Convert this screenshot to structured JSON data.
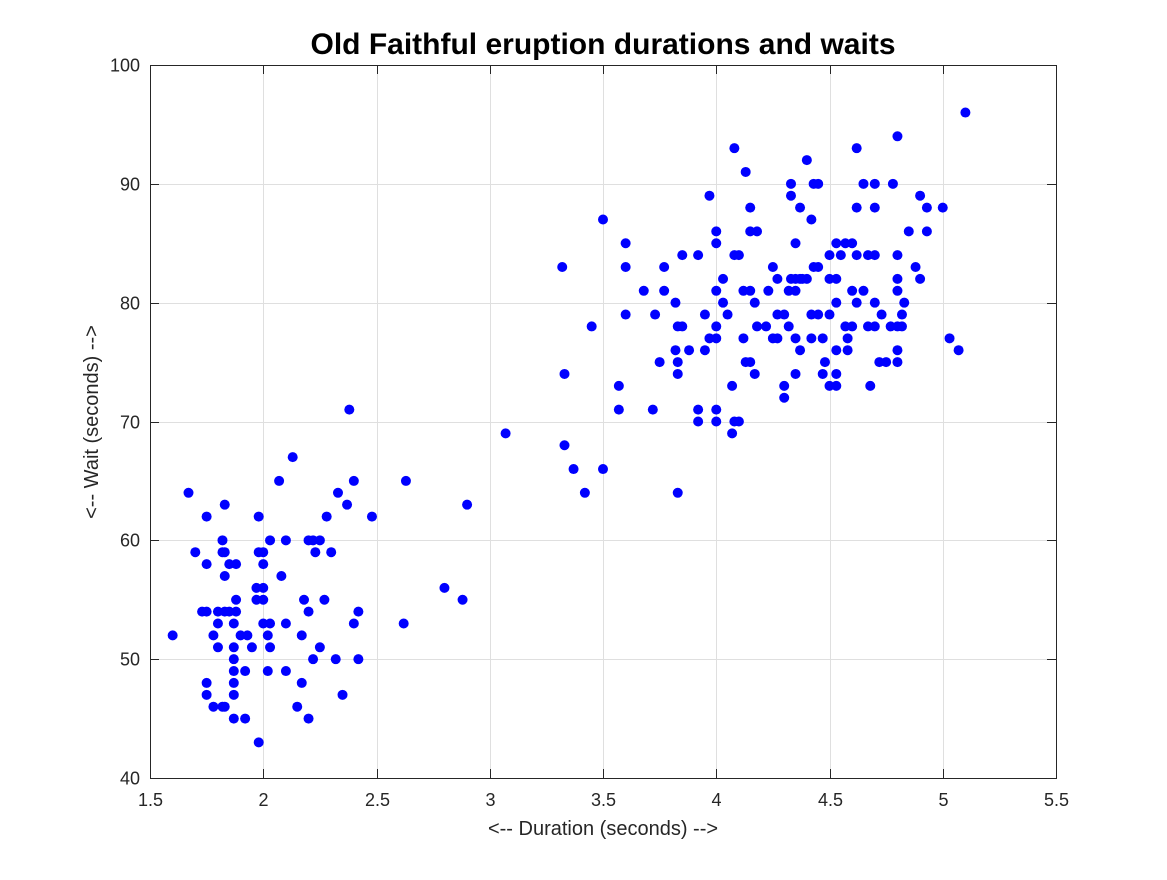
{
  "chart_data": {
    "type": "scatter",
    "title": "Old Faithful eruption durations and waits",
    "xlabel": "<-- Duration (seconds) -->",
    "ylabel": "<-- Wait (seconds) -->",
    "xlim": [
      1.5,
      5.5
    ],
    "ylim": [
      40,
      100
    ],
    "xticks": [
      "1.5",
      "2",
      "2.5",
      "3",
      "3.5",
      "4",
      "4.5",
      "5",
      "5.5"
    ],
    "yticks": [
      "40",
      "50",
      "60",
      "70",
      "80",
      "90",
      "100"
    ],
    "grid": true,
    "legend": "none",
    "marker_color": "#0000ff",
    "points": [
      [
        1.6,
        52
      ],
      [
        1.67,
        64
      ],
      [
        1.7,
        59
      ],
      [
        1.73,
        54
      ],
      [
        1.75,
        62
      ],
      [
        1.75,
        58
      ],
      [
        1.75,
        48
      ],
      [
        1.75,
        47
      ],
      [
        1.75,
        54
      ],
      [
        1.78,
        46
      ],
      [
        1.78,
        52
      ],
      [
        1.8,
        54
      ],
      [
        1.8,
        53
      ],
      [
        1.8,
        51
      ],
      [
        1.82,
        60
      ],
      [
        1.82,
        59
      ],
      [
        1.82,
        46
      ],
      [
        1.83,
        63
      ],
      [
        1.83,
        57
      ],
      [
        1.83,
        54
      ],
      [
        1.83,
        59
      ],
      [
        1.83,
        46
      ],
      [
        1.85,
        58
      ],
      [
        1.85,
        54
      ],
      [
        1.87,
        53
      ],
      [
        1.87,
        51
      ],
      [
        1.87,
        50
      ],
      [
        1.87,
        49
      ],
      [
        1.87,
        48
      ],
      [
        1.87,
        47
      ],
      [
        1.87,
        45
      ],
      [
        1.88,
        58
      ],
      [
        1.88,
        55
      ],
      [
        1.88,
        54
      ],
      [
        1.9,
        52
      ],
      [
        1.92,
        49
      ],
      [
        1.92,
        45
      ],
      [
        1.93,
        52
      ],
      [
        1.95,
        51
      ],
      [
        1.97,
        56
      ],
      [
        1.97,
        55
      ],
      [
        1.98,
        62
      ],
      [
        1.98,
        59
      ],
      [
        1.98,
        43
      ],
      [
        2.0,
        59
      ],
      [
        2.0,
        58
      ],
      [
        2.0,
        56
      ],
      [
        2.0,
        55
      ],
      [
        2.0,
        53
      ],
      [
        2.02,
        52
      ],
      [
        2.02,
        49
      ],
      [
        2.03,
        60
      ],
      [
        2.03,
        53
      ],
      [
        2.03,
        51
      ],
      [
        2.07,
        65
      ],
      [
        2.08,
        57
      ],
      [
        2.1,
        60
      ],
      [
        2.1,
        53
      ],
      [
        2.1,
        49
      ],
      [
        2.13,
        67
      ],
      [
        2.15,
        46
      ],
      [
        2.17,
        52
      ],
      [
        2.17,
        48
      ],
      [
        2.18,
        55
      ],
      [
        2.2,
        60
      ],
      [
        2.2,
        54
      ],
      [
        2.2,
        45
      ],
      [
        2.22,
        60
      ],
      [
        2.22,
        50
      ],
      [
        2.23,
        59
      ],
      [
        2.25,
        60
      ],
      [
        2.25,
        51
      ],
      [
        2.27,
        55
      ],
      [
        2.28,
        62
      ],
      [
        2.3,
        59
      ],
      [
        2.32,
        50
      ],
      [
        2.33,
        64
      ],
      [
        2.35,
        47
      ],
      [
        2.37,
        63
      ],
      [
        2.38,
        71
      ],
      [
        2.4,
        65
      ],
      [
        2.4,
        53
      ],
      [
        2.42,
        54
      ],
      [
        2.42,
        50
      ],
      [
        2.48,
        62
      ],
      [
        2.62,
        53
      ],
      [
        2.63,
        65
      ],
      [
        2.8,
        56
      ],
      [
        2.88,
        55
      ],
      [
        2.9,
        63
      ],
      [
        3.07,
        69
      ],
      [
        3.32,
        83
      ],
      [
        3.33,
        74
      ],
      [
        3.33,
        68
      ],
      [
        3.37,
        66
      ],
      [
        3.42,
        64
      ],
      [
        3.45,
        78
      ],
      [
        3.5,
        87
      ],
      [
        3.5,
        66
      ],
      [
        3.57,
        73
      ],
      [
        3.57,
        71
      ],
      [
        3.6,
        85
      ],
      [
        3.6,
        83
      ],
      [
        3.6,
        79
      ],
      [
        3.68,
        81
      ],
      [
        3.72,
        71
      ],
      [
        3.73,
        79
      ],
      [
        3.75,
        75
      ],
      [
        3.77,
        81
      ],
      [
        3.77,
        83
      ],
      [
        3.82,
        80
      ],
      [
        3.82,
        76
      ],
      [
        3.83,
        78
      ],
      [
        3.83,
        75
      ],
      [
        3.83,
        74
      ],
      [
        3.83,
        64
      ],
      [
        3.85,
        84
      ],
      [
        3.85,
        78
      ],
      [
        3.88,
        76
      ],
      [
        3.92,
        84
      ],
      [
        3.92,
        71
      ],
      [
        3.92,
        70
      ],
      [
        3.95,
        79
      ],
      [
        3.95,
        76
      ],
      [
        3.97,
        89
      ],
      [
        3.97,
        77
      ],
      [
        4.0,
        86
      ],
      [
        4.0,
        85
      ],
      [
        4.0,
        81
      ],
      [
        4.0,
        78
      ],
      [
        4.0,
        77
      ],
      [
        4.0,
        71
      ],
      [
        4.0,
        70
      ],
      [
        4.03,
        82
      ],
      [
        4.03,
        80
      ],
      [
        4.05,
        79
      ],
      [
        4.07,
        73
      ],
      [
        4.07,
        69
      ],
      [
        4.08,
        93
      ],
      [
        4.08,
        84
      ],
      [
        4.08,
        70
      ],
      [
        4.1,
        84
      ],
      [
        4.1,
        70
      ],
      [
        4.12,
        81
      ],
      [
        4.12,
        77
      ],
      [
        4.13,
        91
      ],
      [
        4.13,
        75
      ],
      [
        4.15,
        88
      ],
      [
        4.15,
        86
      ],
      [
        4.15,
        81
      ],
      [
        4.15,
        75
      ],
      [
        4.17,
        80
      ],
      [
        4.17,
        74
      ],
      [
        4.18,
        86
      ],
      [
        4.18,
        78
      ],
      [
        4.22,
        78
      ],
      [
        4.23,
        81
      ],
      [
        4.25,
        83
      ],
      [
        4.25,
        77
      ],
      [
        4.27,
        82
      ],
      [
        4.27,
        79
      ],
      [
        4.27,
        77
      ],
      [
        4.3,
        79
      ],
      [
        4.3,
        73
      ],
      [
        4.3,
        72
      ],
      [
        4.32,
        81
      ],
      [
        4.32,
        78
      ],
      [
        4.33,
        90
      ],
      [
        4.33,
        89
      ],
      [
        4.33,
        82
      ],
      [
        4.35,
        85
      ],
      [
        4.35,
        82
      ],
      [
        4.35,
        81
      ],
      [
        4.35,
        77
      ],
      [
        4.35,
        74
      ],
      [
        4.37,
        88
      ],
      [
        4.37,
        82
      ],
      [
        4.37,
        76
      ],
      [
        4.38,
        82
      ],
      [
        4.4,
        92
      ],
      [
        4.4,
        82
      ],
      [
        4.42,
        87
      ],
      [
        4.42,
        79
      ],
      [
        4.42,
        77
      ],
      [
        4.43,
        90
      ],
      [
        4.43,
        83
      ],
      [
        4.45,
        90
      ],
      [
        4.45,
        83
      ],
      [
        4.45,
        79
      ],
      [
        4.47,
        77
      ],
      [
        4.47,
        74
      ],
      [
        4.48,
        75
      ],
      [
        4.5,
        84
      ],
      [
        4.5,
        82
      ],
      [
        4.5,
        79
      ],
      [
        4.5,
        73
      ],
      [
        4.53,
        85
      ],
      [
        4.53,
        82
      ],
      [
        4.53,
        80
      ],
      [
        4.53,
        76
      ],
      [
        4.53,
        74
      ],
      [
        4.53,
        73
      ],
      [
        4.55,
        84
      ],
      [
        4.57,
        85
      ],
      [
        4.57,
        78
      ],
      [
        4.58,
        77
      ],
      [
        4.58,
        76
      ],
      [
        4.6,
        85
      ],
      [
        4.6,
        81
      ],
      [
        4.6,
        78
      ],
      [
        4.62,
        93
      ],
      [
        4.62,
        88
      ],
      [
        4.62,
        84
      ],
      [
        4.62,
        80
      ],
      [
        4.65,
        90
      ],
      [
        4.65,
        81
      ],
      [
        4.67,
        84
      ],
      [
        4.67,
        78
      ],
      [
        4.68,
        73
      ],
      [
        4.7,
        90
      ],
      [
        4.7,
        88
      ],
      [
        4.7,
        84
      ],
      [
        4.7,
        80
      ],
      [
        4.7,
        78
      ],
      [
        4.72,
        75
      ],
      [
        4.73,
        79
      ],
      [
        4.75,
        75
      ],
      [
        4.77,
        78
      ],
      [
        4.78,
        90
      ],
      [
        4.8,
        94
      ],
      [
        4.8,
        84
      ],
      [
        4.8,
        82
      ],
      [
        4.8,
        81
      ],
      [
        4.8,
        78
      ],
      [
        4.8,
        76
      ],
      [
        4.8,
        75
      ],
      [
        4.82,
        79
      ],
      [
        4.82,
        78
      ],
      [
        4.83,
        80
      ],
      [
        4.85,
        86
      ],
      [
        4.88,
        83
      ],
      [
        4.9,
        89
      ],
      [
        4.9,
        82
      ],
      [
        4.93,
        88
      ],
      [
        4.93,
        86
      ],
      [
        5.0,
        88
      ],
      [
        5.03,
        77
      ],
      [
        5.07,
        76
      ],
      [
        5.1,
        96
      ]
    ]
  }
}
